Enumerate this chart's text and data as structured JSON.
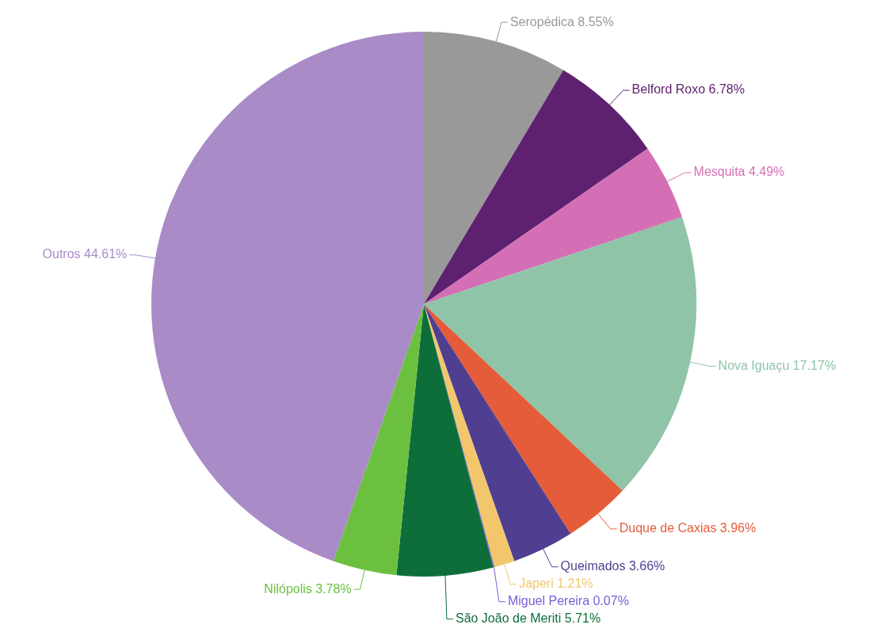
{
  "chart_data": {
    "type": "pie",
    "categories": [
      "Seropédica",
      "Belford Roxo",
      "Mesquita",
      "Nova Iguaçu",
      "Duque de Caxias",
      "Queimados",
      "Japeri",
      "Miguel Pereira",
      "São João de Meriti",
      "Nilópolis",
      "Outros"
    ],
    "values": [
      8.55,
      6.78,
      4.49,
      17.17,
      3.96,
      3.66,
      1.21,
      0.07,
      5.71,
      3.78,
      44.61
    ],
    "value_labels": [
      "8.55%",
      "6.78%",
      "4.49%",
      "17.17%",
      "3.96%",
      "3.66%",
      "1.21%",
      "0.07%",
      "5.71%",
      "3.78%",
      "44.61%"
    ],
    "colors": [
      "#999999",
      "#5e2170",
      "#d46fb5",
      "#8fc4a8",
      "#e45c3a",
      "#503f91",
      "#f2c76b",
      "#7b5cd6",
      "#0d6e3a",
      "#6cc03f",
      "#a98bc8"
    ],
    "legend": false
  }
}
